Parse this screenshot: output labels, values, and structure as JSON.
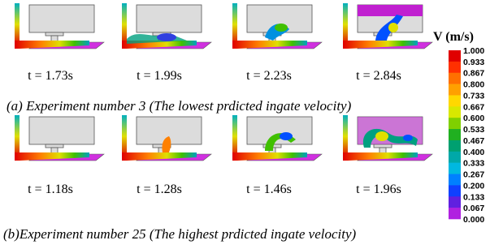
{
  "row1": {
    "times": [
      "t = 1.73s",
      "t = 1.99s",
      "t = 2.23s",
      "t = 2.84s"
    ],
    "caption": "(a) Experiment number 3 (The lowest prdicted ingate velocity)"
  },
  "row2": {
    "times": [
      "t = 1.18s",
      "t = 1.28s",
      "t = 1.46s",
      "t = 1.96s"
    ],
    "caption": "(b)Experiment number 25 (The highest prdicted ingate velocity)"
  },
  "legend": {
    "title": "V (m/s)",
    "labels": [
      "1.000",
      "0.933",
      "0.867",
      "0.800",
      "0.733",
      "0.667",
      "0.600",
      "0.533",
      "0.467",
      "0.400",
      "0.333",
      "0.267",
      "0.200",
      "0.133",
      "0.067",
      "0.000"
    ]
  }
}
